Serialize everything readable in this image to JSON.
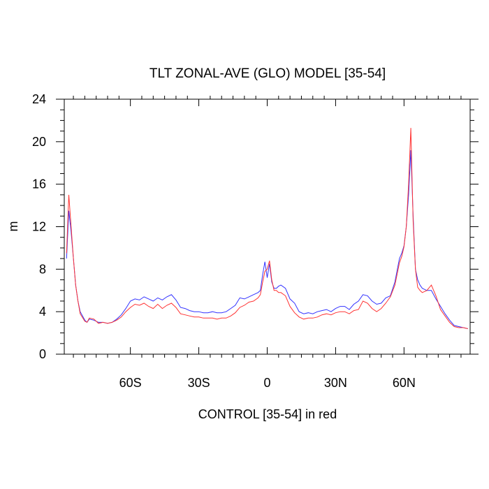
{
  "chart_data": {
    "type": "line",
    "title": "TLT ZONAL-AVE (GLO) MODEL [35-54]",
    "xlabel": "CONTROL [35-54] in red",
    "ylabel": "m",
    "xlim": [
      -89,
      89
    ],
    "ylim": [
      0,
      24
    ],
    "x_ticks": [
      {
        "value": -60,
        "label": "60S"
      },
      {
        "value": -30,
        "label": "30S"
      },
      {
        "value": 0,
        "label": "0"
      },
      {
        "value": 30,
        "label": "30N"
      },
      {
        "value": 60,
        "label": "60N"
      }
    ],
    "y_ticks": [
      {
        "value": 0,
        "label": "0"
      },
      {
        "value": 4,
        "label": "4"
      },
      {
        "value": 8,
        "label": "8"
      },
      {
        "value": 12,
        "label": "12"
      },
      {
        "value": 16,
        "label": "16"
      },
      {
        "value": 20,
        "label": "20"
      },
      {
        "value": 24,
        "label": "24"
      }
    ],
    "grid": false,
    "series": [
      {
        "color": "#3333ff",
        "x": [
          -88,
          -87,
          -86,
          -85,
          -84,
          -83,
          -82,
          -80,
          -79,
          -78,
          -76,
          -74,
          -72,
          -70,
          -68,
          -66,
          -64,
          -62,
          -60,
          -58,
          -56,
          -54,
          -52,
          -50,
          -48,
          -46,
          -44,
          -42,
          -40,
          -38,
          -36,
          -34,
          -32,
          -30,
          -28,
          -26,
          -24,
          -22,
          -20,
          -18,
          -16,
          -14,
          -12,
          -10,
          -8,
          -6,
          -4,
          -3,
          -2,
          -1,
          0,
          1,
          2,
          3,
          4,
          5,
          6,
          8,
          10,
          12,
          14,
          16,
          18,
          20,
          22,
          24,
          26,
          28,
          30,
          32,
          34,
          36,
          38,
          40,
          42,
          44,
          46,
          48,
          50,
          52,
          54,
          56,
          58,
          59,
          60,
          61,
          62,
          63,
          64,
          65,
          66,
          67,
          68,
          70,
          72,
          74,
          76,
          78,
          80,
          82,
          84,
          86,
          88
        ],
        "y": [
          9.0,
          13.5,
          11.5,
          9.0,
          6.5,
          5.0,
          4.0,
          3.2,
          3.0,
          3.3,
          3.2,
          3.0,
          3.0,
          2.9,
          3.0,
          3.3,
          3.7,
          4.3,
          5.0,
          5.2,
          5.1,
          5.4,
          5.2,
          5.0,
          5.3,
          5.1,
          5.4,
          5.6,
          5.1,
          4.4,
          4.3,
          4.1,
          4.0,
          4.0,
          3.9,
          3.9,
          4.0,
          3.9,
          3.9,
          4.0,
          4.3,
          4.6,
          5.3,
          5.2,
          5.4,
          5.6,
          5.8,
          6.0,
          7.5,
          8.7,
          7.2,
          8.5,
          6.8,
          6.2,
          6.2,
          6.4,
          6.5,
          6.2,
          5.2,
          4.8,
          4.0,
          3.8,
          3.9,
          3.8,
          4.0,
          4.1,
          4.2,
          4.0,
          4.3,
          4.5,
          4.5,
          4.2,
          4.7,
          5.0,
          5.6,
          5.5,
          5.0,
          4.7,
          4.8,
          5.3,
          5.5,
          6.8,
          9.0,
          9.5,
          10.2,
          12.0,
          15.0,
          19.2,
          13.0,
          8.0,
          7.0,
          6.5,
          6.2,
          6.0,
          6.0,
          5.2,
          4.5,
          3.8,
          3.2,
          2.7,
          2.6,
          2.5,
          2.4
        ]
      },
      {
        "color": "#ff3333",
        "x": [
          -88,
          -87,
          -86,
          -85,
          -84,
          -83,
          -82,
          -80,
          -79,
          -78,
          -76,
          -74,
          -72,
          -70,
          -68,
          -66,
          -64,
          -62,
          -60,
          -58,
          -56,
          -54,
          -52,
          -50,
          -48,
          -46,
          -44,
          -42,
          -40,
          -38,
          -36,
          -34,
          -32,
          -30,
          -28,
          -26,
          -24,
          -22,
          -20,
          -18,
          -16,
          -14,
          -12,
          -10,
          -8,
          -6,
          -4,
          -3,
          -2,
          -1,
          0,
          1,
          2,
          3,
          4,
          5,
          6,
          8,
          10,
          12,
          14,
          16,
          18,
          20,
          22,
          24,
          26,
          28,
          30,
          32,
          34,
          36,
          38,
          40,
          42,
          44,
          46,
          48,
          50,
          52,
          54,
          56,
          58,
          59,
          60,
          61,
          62,
          63,
          64,
          65,
          66,
          67,
          68,
          70,
          72,
          74,
          76,
          78,
          80,
          82,
          84,
          86,
          88
        ],
        "y": [
          9.5,
          15.0,
          12.0,
          9.0,
          6.5,
          5.0,
          3.8,
          3.1,
          3.0,
          3.4,
          3.3,
          2.9,
          3.0,
          2.9,
          3.0,
          3.2,
          3.5,
          4.0,
          4.4,
          4.7,
          4.6,
          4.8,
          4.5,
          4.3,
          4.7,
          4.3,
          4.6,
          4.8,
          4.4,
          3.8,
          3.7,
          3.6,
          3.5,
          3.5,
          3.4,
          3.4,
          3.4,
          3.3,
          3.4,
          3.4,
          3.6,
          3.9,
          4.4,
          4.6,
          4.9,
          5.0,
          5.3,
          5.6,
          6.8,
          7.8,
          8.0,
          8.8,
          7.0,
          6.0,
          6.0,
          5.8,
          5.8,
          5.5,
          4.5,
          3.9,
          3.5,
          3.3,
          3.4,
          3.4,
          3.5,
          3.7,
          3.8,
          3.7,
          3.9,
          4.0,
          4.0,
          3.8,
          4.1,
          4.2,
          5.0,
          4.8,
          4.3,
          4.0,
          4.3,
          4.8,
          5.4,
          6.5,
          8.6,
          9.2,
          10.1,
          12.0,
          16.0,
          21.3,
          12.5,
          8.0,
          6.3,
          6.0,
          5.8,
          6.0,
          6.5,
          5.5,
          4.2,
          3.6,
          3.0,
          2.6,
          2.5,
          2.5,
          2.4
        ]
      }
    ]
  }
}
